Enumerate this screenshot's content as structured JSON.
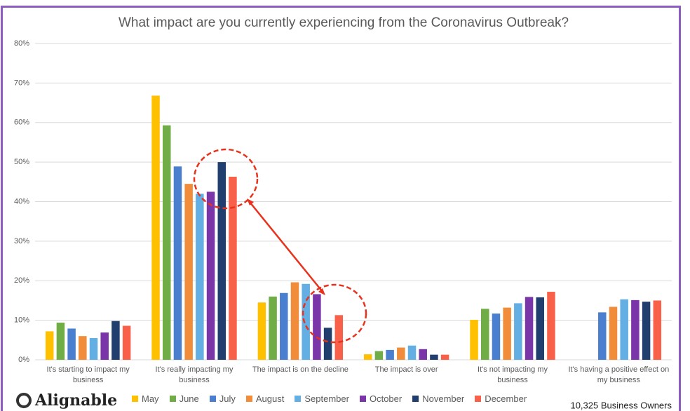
{
  "chart_data": {
    "type": "bar",
    "title": "What impact are you currently experiencing from the Coronavirus Outbreak?",
    "categories": [
      "It's starting to impact my business",
      "It's really impacting my business",
      "The impact is on the decline",
      "The impact is over",
      "It's not impacting my business",
      "It's having a positive effect on my business"
    ],
    "series": [
      {
        "name": "May",
        "color": "#ffc000",
        "values": [
          7.2,
          66.8,
          14.5,
          1.4,
          10.1,
          null
        ]
      },
      {
        "name": "June",
        "color": "#70ad47",
        "values": [
          9.4,
          59.3,
          16.0,
          2.2,
          12.9,
          null
        ]
      },
      {
        "name": "July",
        "color": "#4a7fd0",
        "values": [
          7.9,
          48.9,
          16.9,
          2.5,
          11.7,
          12.0
        ]
      },
      {
        "name": "August",
        "color": "#f08c3a",
        "values": [
          6.0,
          44.5,
          19.6,
          3.1,
          13.2,
          13.4
        ]
      },
      {
        "name": "September",
        "color": "#63aee3",
        "values": [
          5.5,
          42.0,
          19.2,
          3.6,
          14.3,
          15.3
        ]
      },
      {
        "name": "October",
        "color": "#7a35a8",
        "values": [
          6.9,
          42.5,
          16.6,
          2.7,
          15.9,
          15.1
        ]
      },
      {
        "name": "November",
        "color": "#203e6e",
        "values": [
          9.8,
          50.0,
          8.1,
          1.3,
          15.8,
          14.7
        ]
      },
      {
        "name": "December",
        "color": "#f9604a",
        "values": [
          8.6,
          46.3,
          11.3,
          1.3,
          17.2,
          15.0
        ]
      }
    ],
    "ylim": [
      0,
      80
    ],
    "yticks": [
      {
        "value": 0,
        "label": "0%"
      },
      {
        "value": 10,
        "label": "10%"
      },
      {
        "value": 20,
        "label": "20%"
      },
      {
        "value": 30,
        "label": "30%"
      },
      {
        "value": 40,
        "label": "40%"
      },
      {
        "value": 50,
        "label": "50%"
      },
      {
        "value": 60,
        "label": "60%"
      },
      {
        "value": 70,
        "label": "70%"
      },
      {
        "value": 80,
        "label": "80%"
      }
    ],
    "grid": true,
    "legend": "bottom"
  },
  "logo": "Alignable",
  "footnote": "10,325 Business Owners"
}
